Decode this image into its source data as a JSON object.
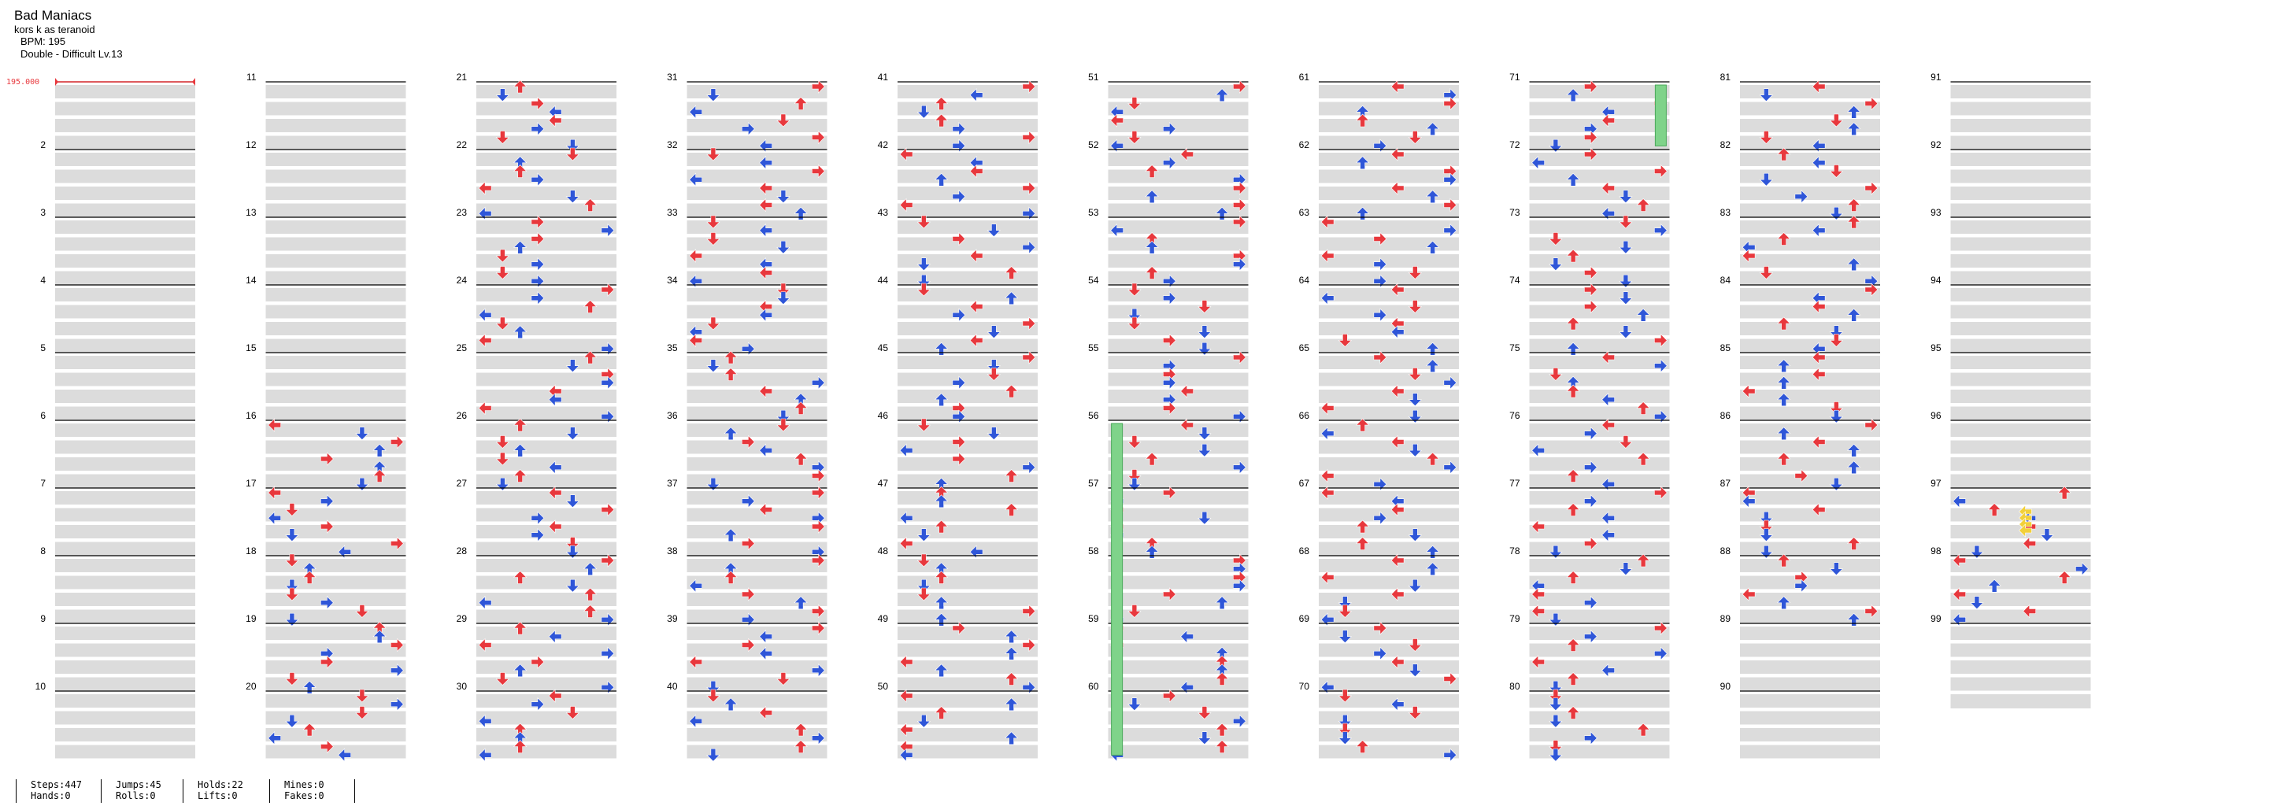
{
  "song": {
    "title": "Bad Maniacs",
    "artist": "kors k as teranoid",
    "bpm_label": "BPM: 195",
    "difficulty_label": "Double - Difficult  Lv.13"
  },
  "bpm_marker": {
    "label": "195.000"
  },
  "measure_numbers": [
    "2",
    "3",
    "4",
    "5",
    "6",
    "7",
    "8",
    "9",
    "10",
    "11",
    "12",
    "13",
    "14",
    "15",
    "16",
    "17",
    "18",
    "19",
    "20",
    "21",
    "22",
    "23",
    "24",
    "25",
    "26",
    "27",
    "28",
    "29",
    "30",
    "31",
    "32",
    "33",
    "34",
    "35",
    "36",
    "37",
    "38",
    "39",
    "40",
    "41",
    "42",
    "43",
    "44",
    "45",
    "46",
    "47",
    "48",
    "49",
    "50",
    "51",
    "52",
    "53",
    "54",
    "55",
    "56",
    "57",
    "58",
    "59",
    "60",
    "61",
    "62",
    "63",
    "64",
    "65",
    "66",
    "67",
    "68",
    "69",
    "70",
    "71",
    "72",
    "73",
    "74",
    "75",
    "76",
    "77",
    "78",
    "79",
    "80",
    "81",
    "82",
    "83",
    "84",
    "85",
    "86",
    "87",
    "88",
    "89",
    "90",
    "91",
    "92",
    "93",
    "94",
    "95",
    "96",
    "97",
    "98",
    "99"
  ],
  "stats": {
    "steps": "Steps:447",
    "hands": "Hands:0",
    "jumps": "Jumps:45",
    "rolls": "Rolls:0",
    "holds": "Holds:22",
    "lifts": "Lifts:0",
    "mines": "Mines:0",
    "fakes": "Fakes:0"
  },
  "colors": {
    "quarter_arrow": "#e8383d",
    "eighth_arrow": "#2f56d8",
    "sixteenth_arrow": "#f2d03a",
    "hold_body": "#7fd38a",
    "band": "#dcdcdc",
    "measure_line": "#000000",
    "bpm_marker": "#e8383d"
  },
  "icons": {
    "arrow": "dance-arrow-icon",
    "hold": "hold-note-icon"
  }
}
